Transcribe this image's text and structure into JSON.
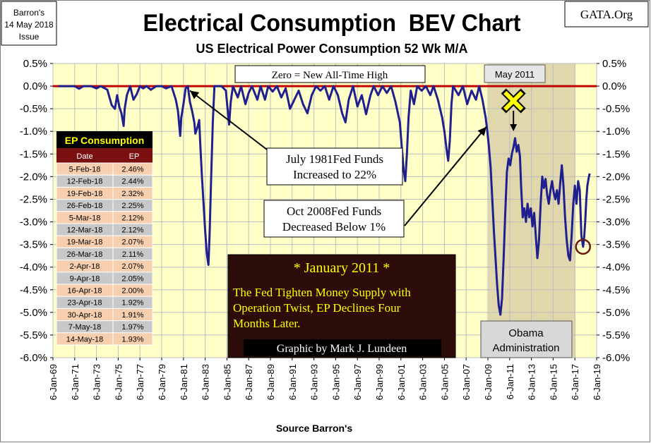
{
  "chart_data": {
    "type": "line",
    "title": "Electrical Consumption  BEV Chart",
    "subtitle": "US Electrical Power Consumption 52 Wk M/A",
    "xlabel": "Source Barron's",
    "ylabel": "",
    "ylim": [
      -6.0,
      0.5
    ],
    "y_ticks": [
      "0.5%",
      "0.0%",
      "-0.5%",
      "-1.0%",
      "-1.5%",
      "-2.0%",
      "-2.5%",
      "-3.0%",
      "-3.5%",
      "-4.0%",
      "-4.5%",
      "-5.0%",
      "-5.5%",
      "-6.0%"
    ],
    "x_ticks": [
      "6-Jan-69",
      "6-Jan-71",
      "6-Jan-73",
      "6-Jan-75",
      "6-Jan-77",
      "6-Jan-79",
      "6-Jan-81",
      "6-Jan-83",
      "6-Jan-85",
      "6-Jan-87",
      "6-Jan-89",
      "6-Jan-91",
      "6-Jan-93",
      "6-Jan-95",
      "6-Jan-97",
      "6-Jan-99",
      "6-Jan-01",
      "6-Jan-03",
      "6-Jan-05",
      "6-Jan-07",
      "6-Jan-09",
      "6-Jan-11",
      "6-Jan-13",
      "6-Jan-15",
      "6-Jan-17",
      "6-Jan-19"
    ],
    "xlim": [
      1969.0,
      2019.0
    ],
    "grid": true,
    "series": [
      {
        "name": "US Electrical Power Consumption 52 Wk M/A (BEV)",
        "color": "#1f1f8f",
        "points": [
          [
            1969.5,
            0
          ],
          [
            1971.0,
            0
          ],
          [
            1971.4,
            -0.06
          ],
          [
            1971.8,
            0
          ],
          [
            1972.5,
            0
          ],
          [
            1973.0,
            -0.05
          ],
          [
            1973.4,
            0
          ],
          [
            1974.0,
            -0.08
          ],
          [
            1974.4,
            -0.42
          ],
          [
            1974.7,
            -0.5
          ],
          [
            1974.9,
            -0.2
          ],
          [
            1975.1,
            -0.45
          ],
          [
            1975.3,
            -0.6
          ],
          [
            1975.5,
            -0.88
          ],
          [
            1975.6,
            -0.5
          ],
          [
            1975.8,
            -0.2
          ],
          [
            1976.1,
            0
          ],
          [
            1976.4,
            -0.3
          ],
          [
            1976.7,
            -0.18
          ],
          [
            1977.0,
            0
          ],
          [
            1977.3,
            -0.05
          ],
          [
            1977.6,
            0
          ],
          [
            1978.0,
            -0.08
          ],
          [
            1978.5,
            0
          ],
          [
            1979.0,
            0
          ],
          [
            1979.4,
            -0.05
          ],
          [
            1979.9,
            0
          ],
          [
            1980.3,
            -0.3
          ],
          [
            1980.5,
            -0.55
          ],
          [
            1980.7,
            -1.1
          ],
          [
            1980.8,
            -0.7
          ],
          [
            1981.0,
            -0.4
          ],
          [
            1981.2,
            -0.05
          ],
          [
            1981.4,
            0
          ],
          [
            1981.6,
            -0.35
          ],
          [
            1981.8,
            -0.55
          ],
          [
            1982.0,
            -0.8
          ],
          [
            1982.1,
            -1.05
          ],
          [
            1982.3,
            -0.9
          ],
          [
            1982.45,
            -0.75
          ],
          [
            1982.55,
            -1.3
          ],
          [
            1982.7,
            -2.0
          ],
          [
            1982.85,
            -2.6
          ],
          [
            1983.0,
            -3.2
          ],
          [
            1983.15,
            -3.7
          ],
          [
            1983.3,
            -3.95
          ],
          [
            1983.4,
            -3.3
          ],
          [
            1983.55,
            -2.0
          ],
          [
            1983.7,
            -0.8
          ],
          [
            1983.85,
            0
          ],
          [
            1984.5,
            0
          ],
          [
            1984.9,
            -0.1
          ],
          [
            1985.1,
            -0.6
          ],
          [
            1985.2,
            -0.85
          ],
          [
            1985.35,
            -0.35
          ],
          [
            1985.55,
            0
          ],
          [
            1986.0,
            -0.25
          ],
          [
            1986.3,
            0
          ],
          [
            1986.7,
            -0.4
          ],
          [
            1987.0,
            -0.15
          ],
          [
            1987.3,
            0
          ],
          [
            1987.8,
            -0.3
          ],
          [
            1988.1,
            0
          ],
          [
            1988.5,
            -0.3
          ],
          [
            1988.8,
            0
          ],
          [
            1989.2,
            -0.12
          ],
          [
            1989.6,
            0
          ],
          [
            1990.0,
            -0.25
          ],
          [
            1990.4,
            -0.05
          ],
          [
            1990.8,
            -0.5
          ],
          [
            1991.2,
            -0.3
          ],
          [
            1991.6,
            -0.1
          ],
          [
            1992.0,
            -0.4
          ],
          [
            1992.4,
            -0.6
          ],
          [
            1992.8,
            -0.2
          ],
          [
            1993.2,
            0
          ],
          [
            1993.6,
            -0.1
          ],
          [
            1994.0,
            0
          ],
          [
            1994.4,
            -0.3
          ],
          [
            1994.8,
            0
          ],
          [
            1995.2,
            -0.2
          ],
          [
            1995.6,
            -0.6
          ],
          [
            1995.9,
            -0.8
          ],
          [
            1996.2,
            -0.3
          ],
          [
            1996.6,
            0
          ],
          [
            1997.0,
            -0.45
          ],
          [
            1997.4,
            -0.2
          ],
          [
            1997.8,
            -0.62
          ],
          [
            1998.2,
            -0.2
          ],
          [
            1998.5,
            0
          ],
          [
            1998.9,
            -0.2
          ],
          [
            1999.3,
            0
          ],
          [
            1999.7,
            -0.15
          ],
          [
            2000.1,
            0
          ],
          [
            2000.5,
            -0.35
          ],
          [
            2000.9,
            -0.8
          ],
          [
            2001.1,
            -1.4
          ],
          [
            2001.25,
            -1.85
          ],
          [
            2001.4,
            -2.1
          ],
          [
            2001.55,
            -1.5
          ],
          [
            2001.7,
            -0.7
          ],
          [
            2001.9,
            -0.1
          ],
          [
            2002.2,
            -0.4
          ],
          [
            2002.5,
            0
          ],
          [
            2002.9,
            -0.1
          ],
          [
            2003.3,
            0
          ],
          [
            2003.7,
            -0.2
          ],
          [
            2004.0,
            0
          ],
          [
            2004.4,
            -0.3
          ],
          [
            2004.8,
            -0.7
          ],
          [
            2005.0,
            -1.0
          ],
          [
            2005.2,
            -1.4
          ],
          [
            2005.35,
            -1.65
          ],
          [
            2005.5,
            -1.2
          ],
          [
            2005.65,
            -0.4
          ],
          [
            2005.8,
            0
          ],
          [
            2006.3,
            -0.2
          ],
          [
            2006.7,
            0
          ],
          [
            2007.1,
            -0.4
          ],
          [
            2007.5,
            -0.1
          ],
          [
            2007.9,
            -0.3
          ],
          [
            2008.2,
            0
          ],
          [
            2008.5,
            -0.3
          ],
          [
            2008.8,
            -0.7
          ],
          [
            2008.95,
            -1.0
          ],
          [
            2009.1,
            -1.35
          ],
          [
            2009.25,
            -1.8
          ],
          [
            2009.4,
            -2.5
          ],
          [
            2009.55,
            -3.2
          ],
          [
            2009.7,
            -3.8
          ],
          [
            2009.85,
            -4.4
          ],
          [
            2010.0,
            -4.85
          ],
          [
            2010.15,
            -5.05
          ],
          [
            2010.3,
            -4.7
          ],
          [
            2010.45,
            -3.8
          ],
          [
            2010.6,
            -2.8
          ],
          [
            2010.75,
            -1.9
          ],
          [
            2010.9,
            -1.6
          ],
          [
            2011.05,
            -1.75
          ],
          [
            2011.2,
            -1.5
          ],
          [
            2011.35,
            -1.35
          ],
          [
            2011.5,
            -1.15
          ],
          [
            2011.65,
            -1.45
          ],
          [
            2011.8,
            -1.3
          ],
          [
            2011.95,
            -1.55
          ],
          [
            2012.05,
            -2.2
          ],
          [
            2012.2,
            -2.9
          ],
          [
            2012.35,
            -2.7
          ],
          [
            2012.5,
            -3.0
          ],
          [
            2012.65,
            -2.6
          ],
          [
            2012.8,
            -2.9
          ],
          [
            2012.95,
            -2.7
          ],
          [
            2013.1,
            -3.1
          ],
          [
            2013.25,
            -2.8
          ],
          [
            2013.4,
            -3.3
          ],
          [
            2013.55,
            -3.8
          ],
          [
            2013.7,
            -3.4
          ],
          [
            2013.85,
            -2.6
          ],
          [
            2014.0,
            -2.0
          ],
          [
            2014.15,
            -2.25
          ],
          [
            2014.3,
            -2.05
          ],
          [
            2014.45,
            -2.4
          ],
          [
            2014.6,
            -2.6
          ],
          [
            2014.75,
            -2.3
          ],
          [
            2014.9,
            -2.1
          ],
          [
            2015.05,
            -2.35
          ],
          [
            2015.2,
            -2.5
          ],
          [
            2015.35,
            -2.3
          ],
          [
            2015.5,
            -2.6
          ],
          [
            2015.65,
            -2.15
          ],
          [
            2015.8,
            -1.75
          ],
          [
            2015.95,
            -2.2
          ],
          [
            2016.1,
            -2.9
          ],
          [
            2016.25,
            -3.4
          ],
          [
            2016.4,
            -3.75
          ],
          [
            2016.55,
            -3.85
          ],
          [
            2016.7,
            -3.3
          ],
          [
            2016.85,
            -2.6
          ],
          [
            2017.0,
            -2.2
          ],
          [
            2017.15,
            -2.6
          ],
          [
            2017.3,
            -2.1
          ],
          [
            2017.45,
            -2.3
          ],
          [
            2017.6,
            -3.3
          ],
          [
            2017.75,
            -3.55
          ],
          [
            2017.85,
            -3.35
          ],
          [
            2017.95,
            -3.0
          ],
          [
            2018.05,
            -2.5
          ],
          [
            2018.15,
            -2.2
          ],
          [
            2018.25,
            -2.05
          ],
          [
            2018.36,
            -1.93
          ]
        ]
      }
    ],
    "annotations": {
      "zero_label": "Zero = New All-Time High",
      "may_2011_label": "May 2011",
      "july_1981": [
        "July 1981Fed Funds",
        "Increased to 22%"
      ],
      "oct_2008": [
        "Oct 2008Fed Funds",
        "Decreased Below 1%"
      ],
      "obama": [
        "Obama",
        "Administration"
      ],
      "jan2011_title": "* January 2011 *",
      "jan2011_body": [
        "The Fed Tighten Money Supply with",
        "Operation Twist, EP Declines Four",
        "Months Later."
      ],
      "credit": "Graphic by Mark J. Lundeen",
      "obama_start": 2009.05,
      "obama_end": 2017.05,
      "may_2011_x": 2011.35
    },
    "table": {
      "title": "EP Consumption",
      "headers": [
        "Date",
        "EP"
      ],
      "rows": [
        [
          "5-Feb-18",
          "2.46%"
        ],
        [
          "12-Feb-18",
          "2.44%"
        ],
        [
          "19-Feb-18",
          "2.32%"
        ],
        [
          "26-Feb-18",
          "2.25%"
        ],
        [
          "5-Mar-18",
          "2.12%"
        ],
        [
          "12-Mar-18",
          "2.12%"
        ],
        [
          "19-Mar-18",
          "2.07%"
        ],
        [
          "26-Mar-18",
          "2.11%"
        ],
        [
          "2-Apr-18",
          "2.07%"
        ],
        [
          "9-Apr-18",
          "2.05%"
        ],
        [
          "16-Apr-18",
          "2.00%"
        ],
        [
          "23-Apr-18",
          "1.92%"
        ],
        [
          "30-Apr-18",
          "1.91%"
        ],
        [
          "7-May-18",
          "1.97%"
        ],
        [
          "14-May-18",
          "1.93%"
        ]
      ]
    }
  },
  "header": {
    "issue": [
      "Barron's",
      "14 May 2018",
      "Issue"
    ],
    "site": "GATA.Org"
  },
  "colors": {
    "plot_bg": "#ffffc8",
    "shade": "#ddd4a8",
    "zero_line": "#c00000",
    "series": "#1f1f8f",
    "note_bg": "#2b0c08",
    "note_text": "#ffff00",
    "table_header": "#7a1010",
    "row_a": "#f7cfaf",
    "row_b": "#c8c8c8"
  }
}
